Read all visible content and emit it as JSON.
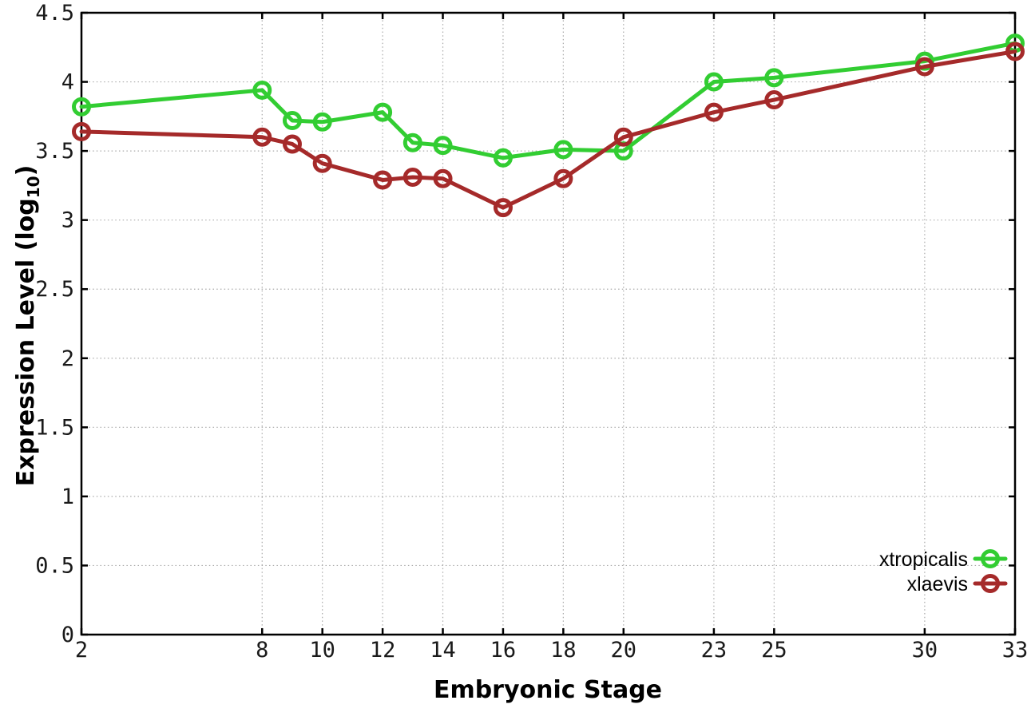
{
  "chart_data": {
    "type": "line",
    "title": "",
    "xlabel": "Embryonic Stage",
    "ylabel": "Expression Level (log10)",
    "ylabel_rich": {
      "prefix": "Expression Level (log",
      "subscript": "10",
      "suffix": ")"
    },
    "xlim": [
      2,
      33
    ],
    "ylim": [
      0,
      4.5
    ],
    "grid": true,
    "grid_style": "dotted",
    "legend_position": "bottom-right",
    "x": [
      2,
      8,
      9,
      10,
      12,
      13,
      14,
      16,
      18,
      20,
      23,
      25,
      30,
      33
    ],
    "x_tick_values": [
      2,
      8,
      10,
      12,
      14,
      16,
      18,
      20,
      23,
      25,
      30,
      33
    ],
    "x_tick_labels": [
      "2",
      "8",
      "10",
      "12",
      "14",
      "16",
      "18",
      "20",
      "23",
      "25",
      "30",
      "33"
    ],
    "y_tick_values": [
      0,
      0.5,
      1,
      1.5,
      2,
      2.5,
      3,
      3.5,
      4,
      4.5
    ],
    "y_tick_labels": [
      "0",
      "0.5",
      "1",
      "1.5",
      "2",
      "2.5",
      "3",
      "3.5",
      "4",
      "4.5"
    ],
    "series": [
      {
        "name": "xtropicalis",
        "color": "#32cd32",
        "marker": "open-circle",
        "values": [
          3.82,
          3.94,
          3.72,
          3.71,
          3.78,
          3.56,
          3.54,
          3.45,
          3.51,
          3.5,
          4.0,
          4.03,
          4.15,
          4.28
        ]
      },
      {
        "name": "xlaevis",
        "color": "#a52a2a",
        "marker": "open-circle",
        "values": [
          3.64,
          3.6,
          3.55,
          3.41,
          3.29,
          3.31,
          3.3,
          3.09,
          3.3,
          3.6,
          3.78,
          3.87,
          4.11,
          4.22
        ]
      }
    ]
  },
  "colors": {
    "background": "#ffffff",
    "axis": "#000000",
    "grid": "#aaaaaa",
    "tick_text": "#1a1a1a"
  }
}
